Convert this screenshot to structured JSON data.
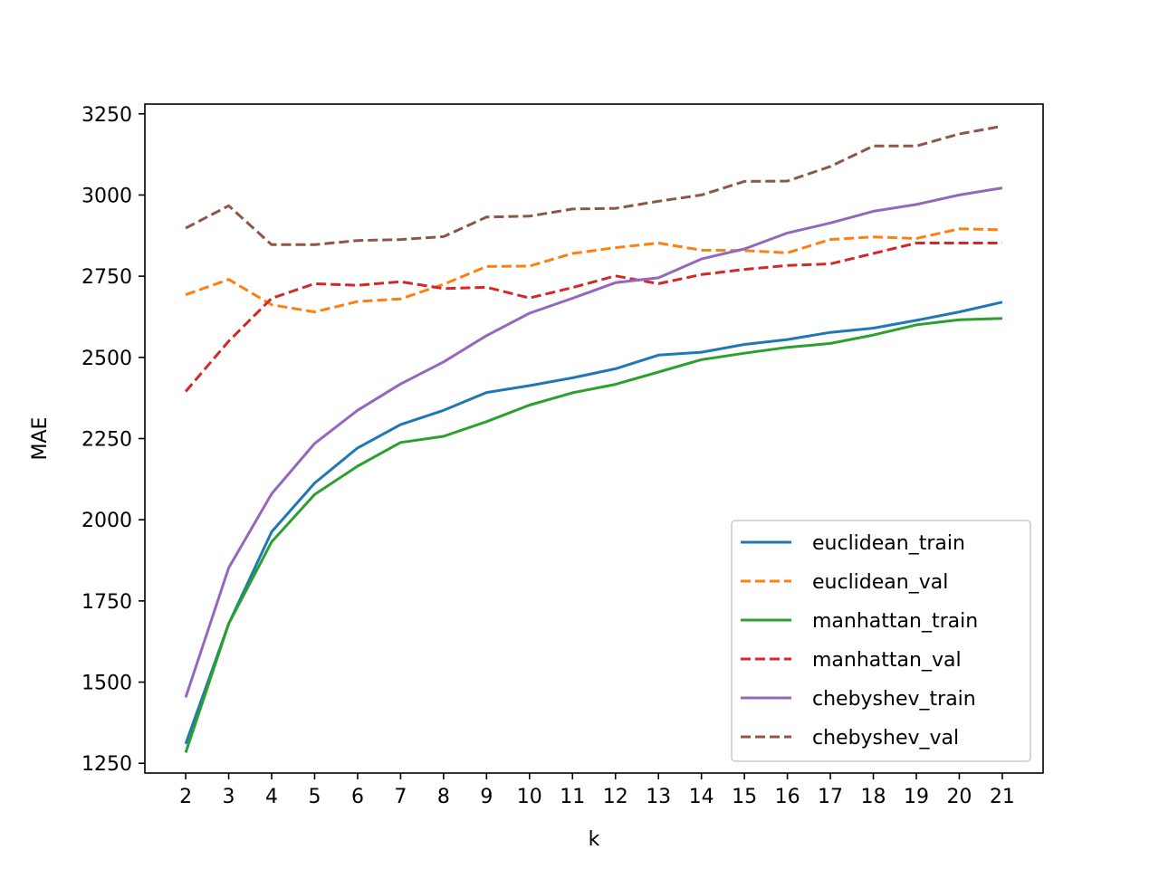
{
  "chart_data": {
    "type": "line",
    "title": "",
    "xlabel": "k",
    "ylabel": "MAE",
    "x": [
      2,
      3,
      4,
      5,
      6,
      7,
      8,
      9,
      10,
      11,
      12,
      13,
      14,
      15,
      16,
      17,
      18,
      19,
      20,
      21
    ],
    "xlim": [
      1.05,
      21.95
    ],
    "ylim": [
      1220,
      3280
    ],
    "yticks": [
      1250,
      1500,
      1750,
      2000,
      2250,
      2500,
      2750,
      3000,
      3250
    ],
    "grid": false,
    "legend_position": "lower right",
    "series": [
      {
        "name": "euclidean_train",
        "color": "#1f77b4",
        "linestyle": "solid",
        "values": [
          1310,
          1680,
          1963,
          2113,
          2221,
          2293,
          2337,
          2392,
          2413,
          2437,
          2465,
          2507,
          2516,
          2540,
          2555,
          2577,
          2590,
          2614,
          2640,
          2670
        ]
      },
      {
        "name": "euclidean_val",
        "color": "#ff7f0e",
        "linestyle": "dashed",
        "values": [
          2693,
          2740,
          2662,
          2640,
          2672,
          2680,
          2725,
          2780,
          2781,
          2820,
          2838,
          2852,
          2830,
          2829,
          2822,
          2863,
          2871,
          2866,
          2896,
          2893
        ]
      },
      {
        "name": "manhattan_train",
        "color": "#2ca02c",
        "linestyle": "solid",
        "values": [
          1283,
          1680,
          1932,
          2078,
          2165,
          2238,
          2257,
          2302,
          2353,
          2391,
          2417,
          2455,
          2493,
          2513,
          2531,
          2543,
          2569,
          2600,
          2616,
          2620
        ]
      },
      {
        "name": "manhattan_val",
        "color": "#d62728",
        "linestyle": "dashed",
        "values": [
          2395,
          2550,
          2682,
          2727,
          2722,
          2733,
          2712,
          2716,
          2683,
          2715,
          2751,
          2727,
          2755,
          2771,
          2783,
          2788,
          2820,
          2852,
          2852,
          2852
        ]
      },
      {
        "name": "chebyshev_train",
        "color": "#9467bd",
        "linestyle": "solid",
        "values": [
          1453,
          1852,
          2080,
          2235,
          2337,
          2418,
          2486,
          2567,
          2636,
          2682,
          2730,
          2745,
          2803,
          2834,
          2883,
          2914,
          2950,
          2971,
          3000,
          3022
        ]
      },
      {
        "name": "chebyshev_val",
        "color": "#8c564b",
        "linestyle": "dashed",
        "values": [
          2898,
          2967,
          2847,
          2847,
          2860,
          2863,
          2872,
          2932,
          2935,
          2957,
          2959,
          2981,
          3000,
          3042,
          3043,
          3088,
          3151,
          3151,
          3188,
          3212
        ]
      }
    ]
  }
}
